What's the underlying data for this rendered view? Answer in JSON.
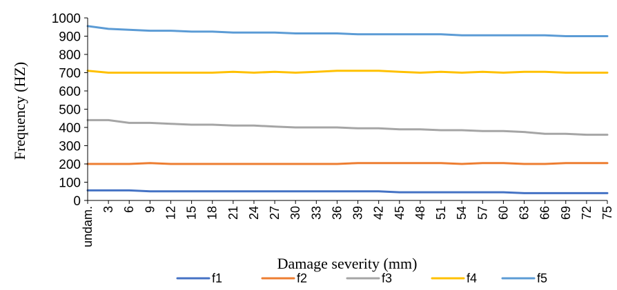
{
  "chart_data": {
    "type": "line",
    "ylabel": "Frequency (HZ)",
    "xlabel": "Damage severity (mm)",
    "ylim": [
      0,
      1000
    ],
    "yticks": [
      0,
      100,
      200,
      300,
      400,
      500,
      600,
      700,
      800,
      900,
      1000
    ],
    "grid": false,
    "legend_position": "bottom",
    "categories": [
      "undam.",
      "3",
      "6",
      "9",
      "12",
      "15",
      "18",
      "21",
      "24",
      "27",
      "30",
      "33",
      "36",
      "39",
      "42",
      "45",
      "48",
      "51",
      "54",
      "57",
      "60",
      "63",
      "66",
      "69",
      "72",
      "75"
    ],
    "series": [
      {
        "name": "f1",
        "color": "#4472c4",
        "values": [
          55,
          55,
          55,
          50,
          50,
          50,
          50,
          50,
          50,
          50,
          50,
          50,
          50,
          50,
          50,
          45,
          45,
          45,
          45,
          45,
          45,
          40,
          40,
          40,
          40,
          40
        ]
      },
      {
        "name": "f2",
        "color": "#ed7d31",
        "values": [
          200,
          200,
          200,
          205,
          200,
          200,
          200,
          200,
          200,
          200,
          200,
          200,
          200,
          205,
          205,
          205,
          205,
          205,
          200,
          205,
          205,
          200,
          200,
          205,
          205,
          205
        ]
      },
      {
        "name": "f3",
        "color": "#a5a5a5",
        "values": [
          440,
          440,
          425,
          425,
          420,
          415,
          415,
          410,
          410,
          405,
          400,
          400,
          400,
          395,
          395,
          390,
          390,
          385,
          385,
          380,
          380,
          375,
          365,
          365,
          360,
          360
        ]
      },
      {
        "name": "f4",
        "color": "#ffc000",
        "values": [
          710,
          700,
          700,
          700,
          700,
          700,
          700,
          705,
          700,
          705,
          700,
          705,
          710,
          710,
          710,
          705,
          700,
          705,
          700,
          705,
          700,
          705,
          705,
          700,
          700,
          700
        ]
      },
      {
        "name": "f5",
        "color": "#5b9bd5",
        "values": [
          955,
          940,
          935,
          930,
          930,
          925,
          925,
          920,
          920,
          920,
          915,
          915,
          915,
          910,
          910,
          910,
          910,
          910,
          905,
          905,
          905,
          905,
          905,
          900,
          900,
          900
        ]
      }
    ]
  }
}
